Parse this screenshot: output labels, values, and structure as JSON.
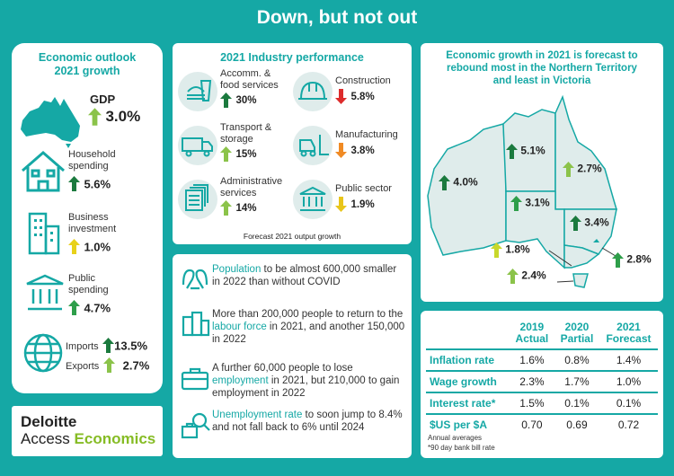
{
  "title": "Down, but not out",
  "colors": {
    "background": "#15a8a5",
    "dark_green": "#1b7a3e",
    "green": "#2e9e4a",
    "light_green": "#8bc34a",
    "yellow_green": "#c8d82b",
    "yellow": "#e8c51a",
    "orange": "#f08a24",
    "red": "#dd2b2b"
  },
  "outlook": {
    "heading_1": "Economic outlook",
    "heading_2": "2021 growth",
    "gdp": {
      "label": "GDP",
      "value": "3.0%",
      "icon": "australia-map-icon"
    },
    "household": {
      "label_1": "Household",
      "label_2": "spending",
      "value": "5.6%",
      "icon": "house-icon"
    },
    "business": {
      "label_1": "Business",
      "label_2": "investment",
      "value": "1.0%",
      "icon": "buildings-icon"
    },
    "public": {
      "label_1": "Public",
      "label_2": "spending",
      "value": "4.7%",
      "icon": "government-building-icon"
    },
    "imports": {
      "label": "Imports",
      "value": "13.5%"
    },
    "exports": {
      "label": "Exports",
      "value": "2.7%",
      "icon": "globe-icon"
    }
  },
  "logo": {
    "line1": "Deloitte",
    "line2a": "Access ",
    "line2b": "Economics"
  },
  "industry": {
    "heading": "2021 Industry performance",
    "footnote": "Forecast 2021 output growth",
    "items": [
      {
        "label_1": "Accomm. &",
        "label_2": "food services",
        "value": "30%",
        "direction": "up",
        "icon": "food-icon"
      },
      {
        "label_1": "Construction",
        "label_2": "",
        "value": "5.8%",
        "direction": "down",
        "icon": "hard-hat-icon"
      },
      {
        "label_1": "Transport &",
        "label_2": "storage",
        "value": "15%",
        "direction": "up",
        "icon": "truck-icon"
      },
      {
        "label_1": "Manufacturing",
        "label_2": "",
        "value": "3.8%",
        "direction": "down",
        "icon": "forklift-icon"
      },
      {
        "label_1": "Administrative",
        "label_2": "services",
        "value": "14%",
        "direction": "up",
        "icon": "documents-icon"
      },
      {
        "label_1": "Public sector",
        "label_2": "",
        "value": "1.9%",
        "direction": "down",
        "icon": "government-building-icon"
      }
    ]
  },
  "facts": [
    {
      "icon": "people-icon",
      "pre": "",
      "hl": "Population",
      "post": " to be almost 600,000 smaller in 2022 than without COVID"
    },
    {
      "icon": "city-icon",
      "pre": "More than 200,000 people to return to the ",
      "hl": "labour force",
      "post": " in 2021, and another 150,000 in 2022"
    },
    {
      "icon": "briefcase-icon",
      "pre": "A further 60,000 people to lose ",
      "hl": "employment",
      "post": " in 2021, but 210,000 to gain employment in 2022"
    },
    {
      "icon": "magnifier-briefcase-icon",
      "pre": "",
      "hl": "Unemployment rate",
      "post": " to soon jump to 8.4% and not fall back to 6% until 2024"
    }
  ],
  "map": {
    "heading_1": "Economic growth in 2021 is forecast to",
    "heading_2": "rebound most in the Northern Territory",
    "heading_3": "and least in Victoria",
    "states": [
      {
        "value": "4.0%",
        "color": "#1b7a3e"
      },
      {
        "value": "5.1%",
        "color": "#1b7a3e"
      },
      {
        "value": "2.7%",
        "color": "#8bc34a"
      },
      {
        "value": "3.1%",
        "color": "#2e9e4a"
      },
      {
        "value": "3.4%",
        "color": "#1b7a3e"
      },
      {
        "value": "1.8%",
        "color": "#c8d82b"
      },
      {
        "value": "2.8%",
        "color": "#2e9e4a"
      },
      {
        "value": "2.4%",
        "color": "#8bc34a"
      }
    ]
  },
  "table": {
    "headers": [
      [
        "",
        ""
      ],
      [
        "2019",
        "Actual"
      ],
      [
        "2020",
        "Partial"
      ],
      [
        "2021",
        "Forecast"
      ]
    ],
    "rows": [
      [
        "Inflation rate",
        "1.6%",
        "0.8%",
        "1.4%"
      ],
      [
        "Wage growth",
        "2.3%",
        "1.7%",
        "1.0%"
      ],
      [
        "Interest rate*",
        "1.5%",
        "0.1%",
        "0.1%"
      ],
      [
        "$US per $A",
        "0.70",
        "0.69",
        "0.72"
      ]
    ],
    "note_1": "Annual averages",
    "note_2": "*90 day bank bill rate"
  }
}
